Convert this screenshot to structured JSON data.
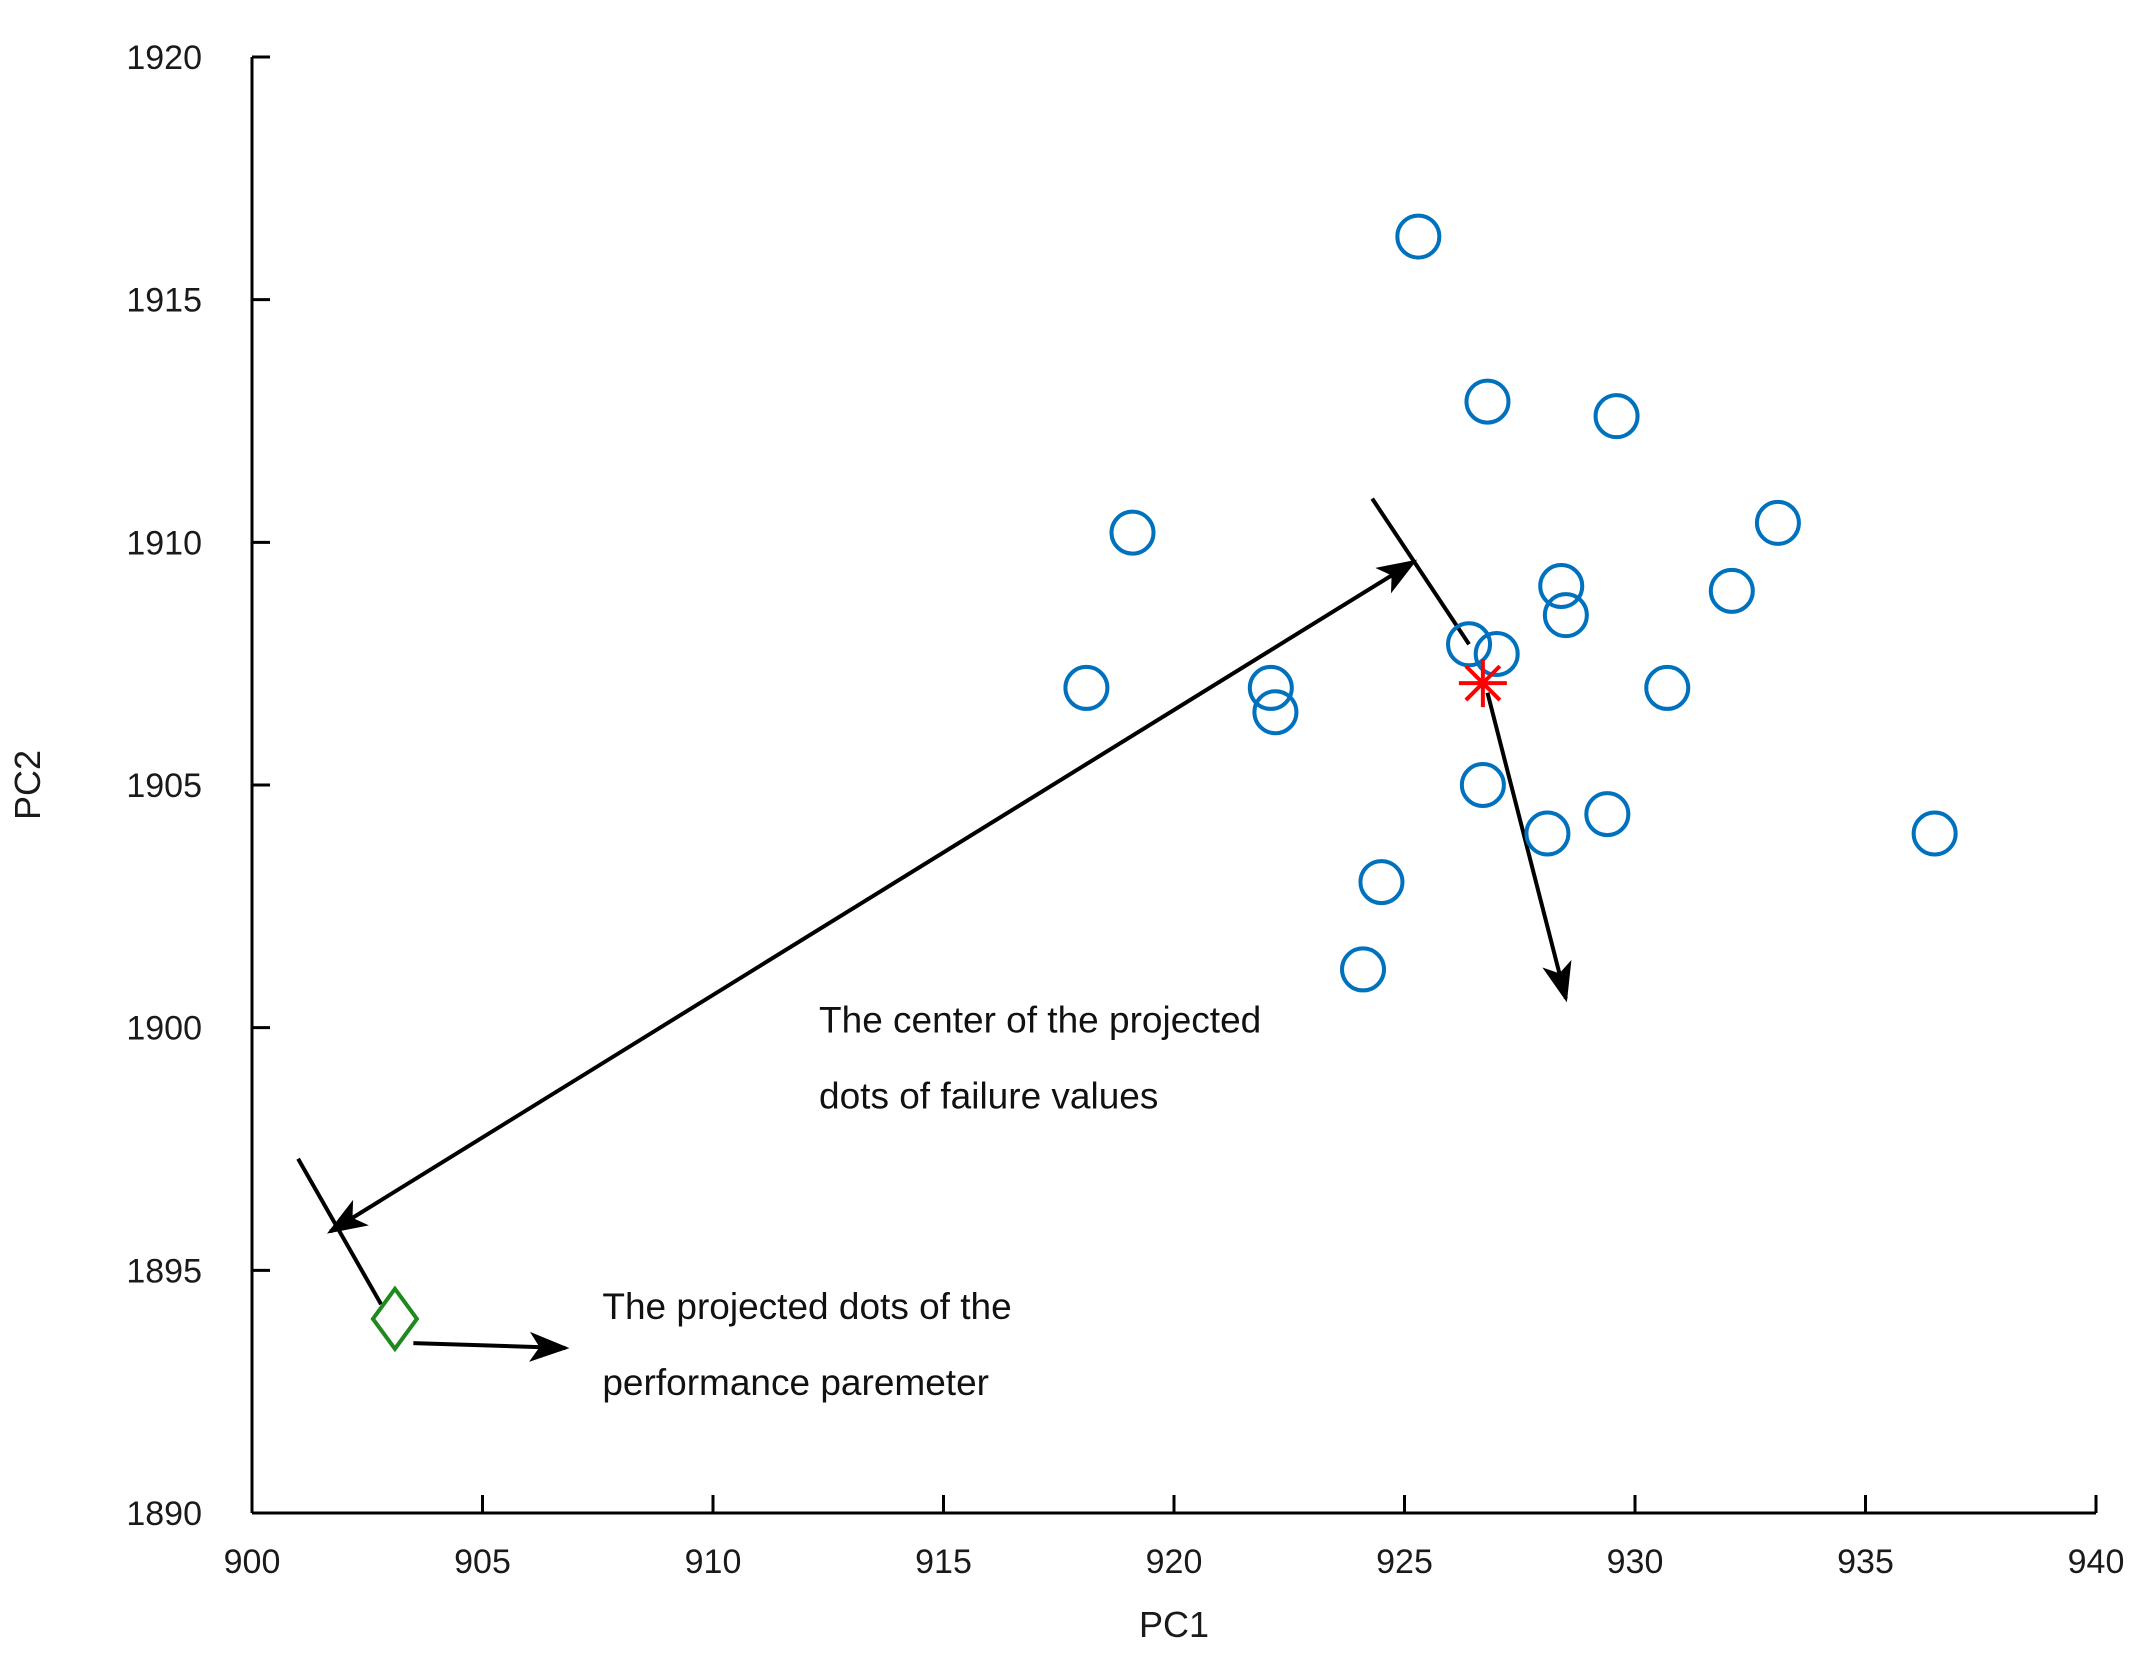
{
  "chart_data": {
    "type": "scatter",
    "title": "",
    "xlabel": "PC1",
    "ylabel": "PC2",
    "xlim": [
      900,
      940
    ],
    "ylim": [
      1890,
      1920
    ],
    "x_ticks": [
      900,
      905,
      910,
      915,
      920,
      925,
      930,
      935,
      940
    ],
    "y_ticks": [
      1890,
      1895,
      1900,
      1905,
      1910,
      1915,
      1920
    ],
    "grid": false,
    "legend": "none",
    "series": [
      {
        "marker": "circle",
        "color": "#0072BD",
        "points": [
          [
            925.3,
            1916.3
          ],
          [
            926.8,
            1912.9
          ],
          [
            929.6,
            1912.6
          ],
          [
            919.1,
            1910.2
          ],
          [
            933.1,
            1910.4
          ],
          [
            928.4,
            1909.1
          ],
          [
            932.1,
            1909.0
          ],
          [
            928.5,
            1908.5
          ],
          [
            926.4,
            1907.9
          ],
          [
            927.0,
            1907.7
          ],
          [
            918.1,
            1907.0
          ],
          [
            922.1,
            1907.0
          ],
          [
            922.2,
            1906.5
          ],
          [
            930.7,
            1907.0
          ],
          [
            926.7,
            1905.0
          ],
          [
            929.4,
            1904.4
          ],
          [
            928.1,
            1904.0
          ],
          [
            936.5,
            1904.0
          ],
          [
            924.5,
            1903.0
          ],
          [
            924.1,
            1901.2
          ]
        ]
      },
      {
        "marker": "star",
        "color": "#FF0000",
        "points": [
          [
            926.7,
            1907.1
          ]
        ]
      },
      {
        "marker": "diamond",
        "color": "#1E8A1E",
        "points": [
          [
            903.1,
            1894.0
          ]
        ]
      }
    ],
    "annotations": [
      {
        "lines": [
          "The center of the projected",
          "dots of failure values"
        ],
        "text_at": [
          912.3,
          1899.9
        ],
        "arrow_from": [
          926.8,
          1906.9
        ],
        "arrow_to": [
          928.5,
          1900.6
        ]
      },
      {
        "lines": [
          "The projected dots of the",
          "performance paremeter"
        ],
        "text_at": [
          907.6,
          1894.0
        ],
        "arrow_from": [
          903.5,
          1893.5
        ],
        "arrow_to": [
          906.8,
          1893.4
        ]
      }
    ],
    "dimension_line": {
      "from": [
        901.7,
        1895.8
      ],
      "to": [
        925.2,
        1909.6
      ],
      "ext_a": [
        [
          901.0,
          1897.3
        ],
        [
          902.8,
          1894.3
        ]
      ],
      "ext_b": [
        [
          924.3,
          1910.9
        ],
        [
          926.4,
          1907.9
        ]
      ]
    },
    "colors": {
      "axis": "#000000",
      "circle": "#0072BD",
      "center": "#FF0000",
      "diamond": "#1E8A1E",
      "arrow": "#000000"
    }
  }
}
